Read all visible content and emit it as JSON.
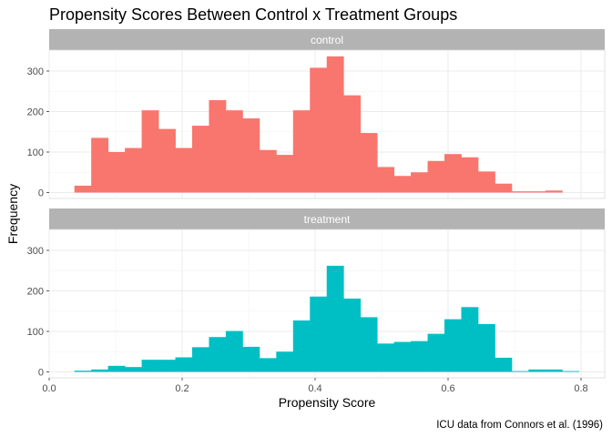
{
  "chart_data": {
    "type": "bar",
    "title": "Propensity Scores Between Control x Treatment Groups",
    "xlabel": "Propensity Score",
    "ylabel": "Frequency",
    "caption": "ICU data from Connors et al. (1996)",
    "xlim": [
      0.0,
      0.82
    ],
    "ylim": [
      0,
      350
    ],
    "x_ticks": [
      0.0,
      0.2,
      0.4,
      0.6,
      0.8
    ],
    "x_tick_labels": [
      "0.0",
      "0.2",
      "0.4",
      "0.6",
      "0.8"
    ],
    "y_ticks": [
      0,
      100,
      200,
      300
    ],
    "y_tick_labels": [
      "0",
      "100",
      "200",
      "300"
    ],
    "bin_width": 0.0253,
    "bin_centers": [
      0.0506,
      0.0759,
      0.1012,
      0.1265,
      0.1518,
      0.1771,
      0.2024,
      0.2277,
      0.253,
      0.2783,
      0.3036,
      0.3289,
      0.3542,
      0.3795,
      0.4048,
      0.4301,
      0.4554,
      0.4807,
      0.506,
      0.5313,
      0.5566,
      0.5819,
      0.6072,
      0.6325,
      0.6578,
      0.6831,
      0.7084,
      0.7337,
      0.759,
      0.7843
    ],
    "grid": true,
    "legend": "none",
    "panels": [
      {
        "name": "control",
        "color": "#F8766D",
        "values": [
          17,
          135,
          100,
          110,
          203,
          157,
          110,
          165,
          228,
          203,
          183,
          105,
          93,
          203,
          308,
          336,
          240,
          147,
          63,
          41,
          50,
          78,
          95,
          87,
          52,
          22,
          3,
          3,
          5,
          0
        ]
      },
      {
        "name": "treatment",
        "color": "#00BFC4",
        "values": [
          3,
          6,
          15,
          12,
          30,
          30,
          36,
          61,
          86,
          101,
          62,
          34,
          50,
          127,
          186,
          262,
          181,
          135,
          70,
          74,
          76,
          94,
          130,
          160,
          118,
          35,
          2,
          6,
          6,
          2
        ]
      }
    ]
  }
}
